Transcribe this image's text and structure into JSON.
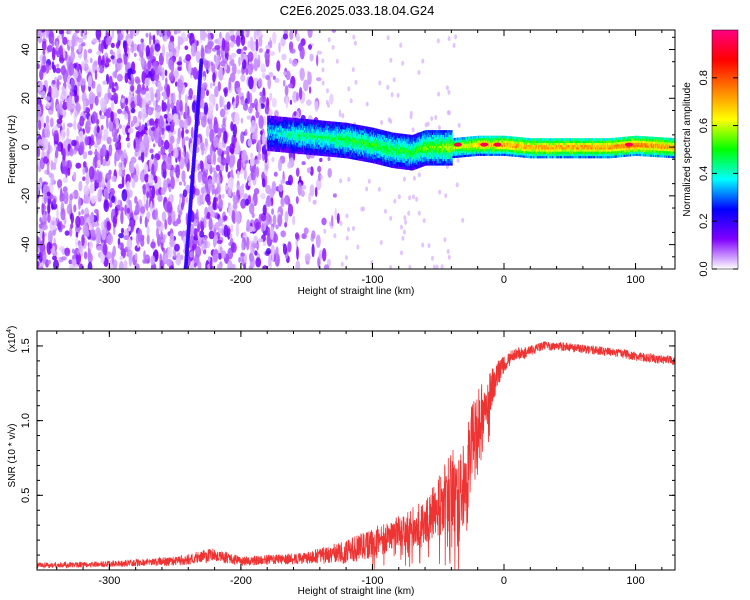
{
  "title": "C2E6.2025.033.18.04.G24",
  "chart_data": [
    {
      "type": "heatmap",
      "xlabel": "Height of straight line (km)",
      "ylabel": "Frequency (Hz)",
      "xlim": [
        -355,
        130
      ],
      "ylim": [
        -50,
        48
      ],
      "xticks": [
        -300,
        -200,
        -100,
        0,
        100
      ],
      "yticks": [
        -40,
        -20,
        0,
        20,
        40
      ],
      "colorbar": {
        "label": "Normalized spectral amplitude",
        "range": [
          0.0,
          1.0
        ],
        "ticks": [
          0.0,
          0.2,
          0.4,
          0.6,
          0.8
        ],
        "tick_labels": [
          "0.0",
          "0.2",
          "0.4",
          "0.6",
          "0.8"
        ],
        "colors": [
          "#ffffff",
          "#8000ff",
          "#0000ff",
          "#00ffff",
          "#00ff00",
          "#ffff00",
          "#ff8000",
          "#ff0000",
          "#ff0080"
        ]
      },
      "ridge": [
        {
          "x": -180,
          "freq": 6,
          "amp": 0.35
        },
        {
          "x": -160,
          "freq": 5,
          "amp": 0.45
        },
        {
          "x": -140,
          "freq": 4,
          "amp": 0.45
        },
        {
          "x": -120,
          "freq": 3,
          "amp": 0.5
        },
        {
          "x": -100,
          "freq": 1,
          "amp": 0.5
        },
        {
          "x": -85,
          "freq": -1,
          "amp": 0.5
        },
        {
          "x": -70,
          "freq": -2,
          "amp": 0.5
        },
        {
          "x": -60,
          "freq": 0,
          "amp": 0.55
        },
        {
          "x": -40,
          "freq": 0,
          "amp": 0.6
        },
        {
          "x": -20,
          "freq": 1,
          "amp": 0.7
        },
        {
          "x": 0,
          "freq": 1,
          "amp": 0.75
        },
        {
          "x": 20,
          "freq": 0,
          "amp": 0.75
        },
        {
          "x": 50,
          "freq": 0,
          "amp": 0.75
        },
        {
          "x": 80,
          "freq": 0,
          "amp": 0.75
        },
        {
          "x": 100,
          "freq": 1,
          "amp": 0.8
        },
        {
          "x": 130,
          "freq": 0,
          "amp": 0.75
        }
      ],
      "noise_region": {
        "x_from": -355,
        "x_to": -140,
        "amp_max": 0.3
      },
      "hot_spots": [
        {
          "x": -35,
          "freq": 1
        },
        {
          "x": -15,
          "freq": 1
        },
        {
          "x": -5,
          "freq": 1
        },
        {
          "x": 95,
          "freq": 1
        }
      ]
    },
    {
      "type": "line",
      "xlabel": "Height of straight line (km)",
      "ylabel": "SNR (10 * v/v)",
      "y_multiplier": "(x10",
      "y_multiplier_exp": "4",
      "y_multiplier_close": ")",
      "xlim": [
        -355,
        130
      ],
      "ylim": [
        0.0,
        1.6
      ],
      "xticks": [
        -300,
        -200,
        -100,
        0,
        100
      ],
      "yticks": [
        0.5,
        1.0,
        1.5
      ],
      "ytick_labels": [
        "0.5",
        "1.0",
        "1.5"
      ],
      "color": "#ee3333",
      "series": [
        {
          "x": [
            -355,
            -300,
            -250,
            -220,
            -200,
            -150,
            -120,
            -100,
            -80,
            -60,
            -50,
            -45,
            -40,
            -35,
            -30,
            -25,
            -20,
            -15,
            -10,
            -5,
            0,
            5,
            10,
            15,
            20,
            30,
            40,
            50,
            60,
            70,
            80,
            90,
            100,
            110,
            120,
            130
          ],
          "values": [
            0.03,
            0.04,
            0.06,
            0.1,
            0.06,
            0.08,
            0.12,
            0.18,
            0.25,
            0.32,
            0.42,
            0.5,
            0.55,
            0.45,
            0.6,
            0.85,
            1.0,
            1.1,
            1.2,
            1.3,
            1.38,
            1.42,
            1.45,
            1.45,
            1.47,
            1.5,
            1.5,
            1.49,
            1.48,
            1.47,
            1.46,
            1.45,
            1.43,
            1.42,
            1.41,
            1.4
          ],
          "noise": [
            0.02,
            0.02,
            0.03,
            0.05,
            0.03,
            0.04,
            0.08,
            0.1,
            0.12,
            0.15,
            0.2,
            0.25,
            0.28,
            0.3,
            0.3,
            0.25,
            0.2,
            0.18,
            0.15,
            0.1,
            0.06,
            0.05,
            0.04,
            0.04,
            0.03,
            0.03,
            0.03,
            0.03,
            0.03,
            0.03,
            0.03,
            0.03,
            0.03,
            0.03,
            0.03,
            0.03
          ]
        }
      ]
    }
  ]
}
